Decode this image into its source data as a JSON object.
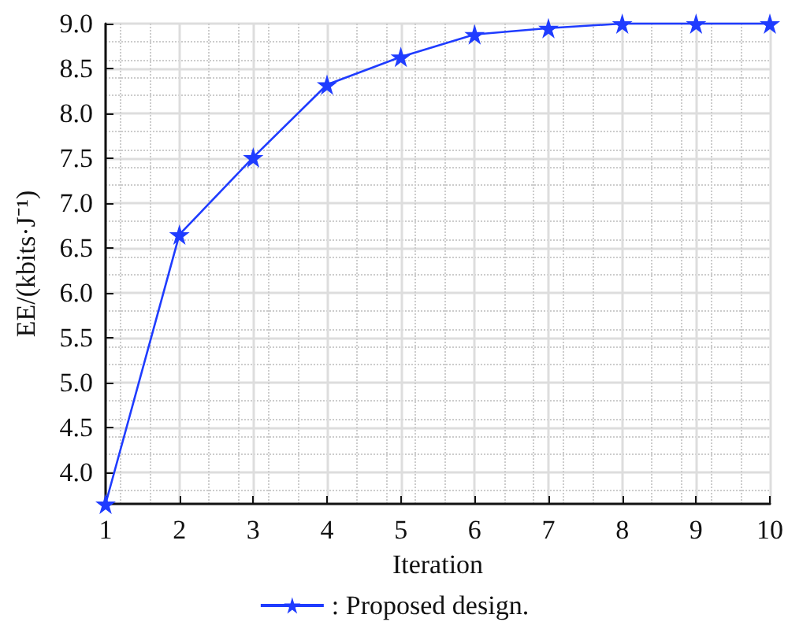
{
  "chart_data": {
    "type": "line",
    "xlabel": "Iteration",
    "ylabel": "EE/(kbits·J⁻¹)",
    "x": [
      1,
      2,
      3,
      4,
      5,
      6,
      7,
      8,
      9,
      10
    ],
    "series": [
      {
        "name": ": Proposed design.",
        "color": "#1f3cff",
        "values": [
          3.65,
          6.65,
          7.51,
          8.32,
          8.63,
          8.88,
          8.95,
          9.0,
          9.0,
          9.0
        ]
      }
    ],
    "xlim": [
      1,
      10
    ],
    "xticks": [
      1,
      2,
      3,
      4,
      5,
      6,
      7,
      8,
      9,
      10
    ],
    "ylim": [
      3.65,
      9.0
    ],
    "yticks": [
      {
        "value": 4,
        "label": "4.0"
      },
      4.5,
      {
        "value": 5,
        "label": "5.0"
      },
      5.5,
      {
        "value": 6,
        "label": "6.0"
      },
      6.5,
      {
        "value": 7,
        "label": "7.0"
      },
      7.5,
      {
        "value": 8,
        "label": "8.0"
      },
      8.5,
      {
        "value": 9,
        "label": "9.0"
      }
    ],
    "grid": true,
    "legend": "bottom",
    "marker": "star",
    "line_style": "solid"
  }
}
